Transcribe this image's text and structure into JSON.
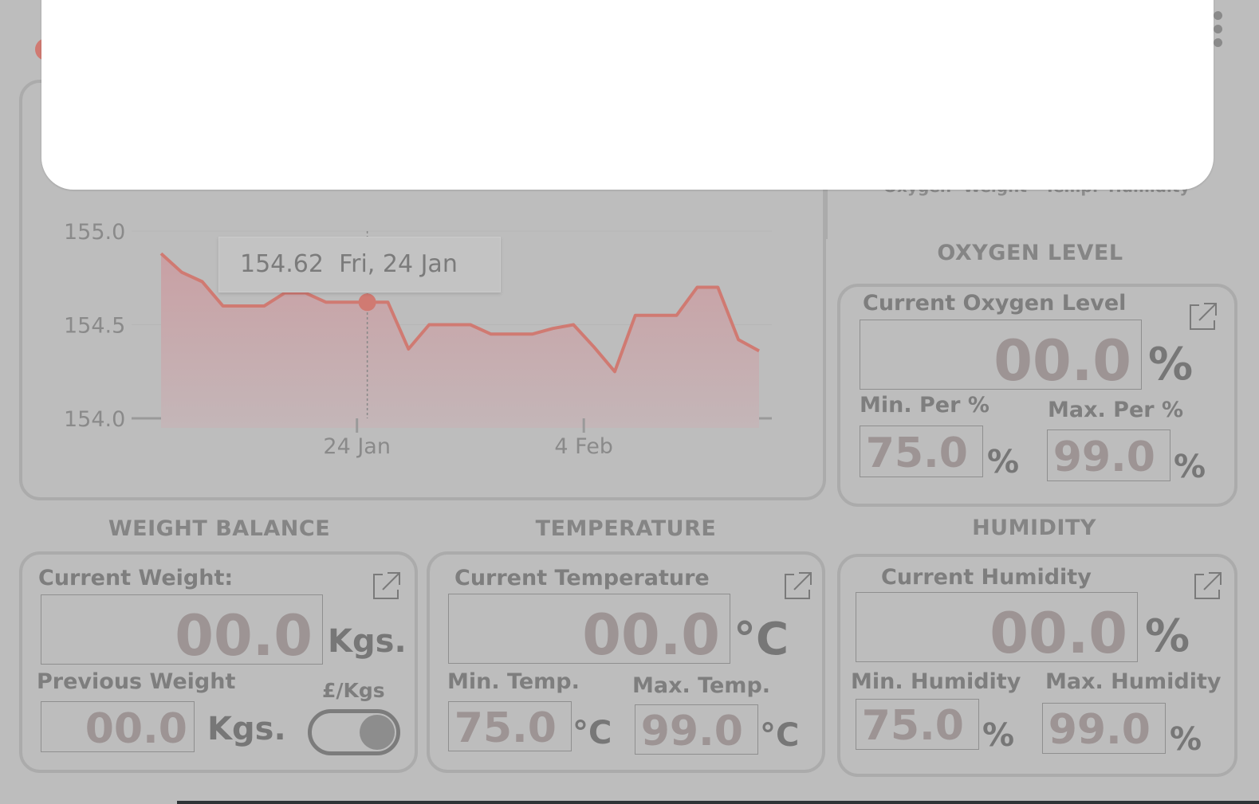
{
  "chart_data": {
    "type": "area",
    "x_ticks": [
      "24 Jan",
      "4 Feb"
    ],
    "y_ticks": [
      "155.0",
      "154.5",
      "154.0"
    ],
    "ylim": [
      154.0,
      155.0
    ],
    "series_color": "#d07a72",
    "values": [
      154.88,
      154.78,
      154.73,
      154.6,
      154.6,
      154.6,
      154.67,
      154.67,
      154.62,
      154.62,
      154.62,
      154.62,
      154.37,
      154.5,
      154.5,
      154.5,
      154.45,
      154.45,
      154.45,
      154.48,
      154.5,
      154.38,
      154.25,
      154.55,
      154.55,
      154.55,
      154.7,
      154.7,
      154.42,
      154.36
    ],
    "tooltip": {
      "value": "154.62",
      "date": "Fri, 24 Jan",
      "index": 10
    }
  },
  "legend_fragment": [
    "Oxygen",
    "Weight",
    "Temp.",
    "Humidity"
  ],
  "oxygen": {
    "title": "OXYGEN LEVEL",
    "current_label": "Current Oxygen Level",
    "current_value": "00.0",
    "unit": "%",
    "min_label": "Min. Per %",
    "min_value": "75.0",
    "max_label": "Max. Per %",
    "max_value": "99.0"
  },
  "weight": {
    "title": "WEIGHT BALANCE",
    "current_label": "Current Weight:",
    "current_value": "00.0",
    "unit": "Kgs.",
    "previous_label": "Previous Weight",
    "previous_value": "00.0",
    "toggle_label": "£/Kgs",
    "toggle_on": true
  },
  "temperature": {
    "title": "TEMPERATURE",
    "current_label": "Current Temperature",
    "current_value": "00.0",
    "unit": "°C",
    "min_label": "Min. Temp.",
    "min_value": "75.0",
    "max_label": "Max. Temp.",
    "max_value": "99.0"
  },
  "humidity": {
    "title": "HUMIDITY",
    "current_label": "Current Humidity",
    "current_value": "00.0",
    "unit": "%",
    "min_label": "Min. Humidity",
    "min_value": "75.0",
    "max_label": "Max. Humidity",
    "max_value": "99.0"
  },
  "colors": {
    "accent": "#d07a72",
    "overlay_bg": "#bdbdbd",
    "modal_bg": "#ffffff"
  }
}
